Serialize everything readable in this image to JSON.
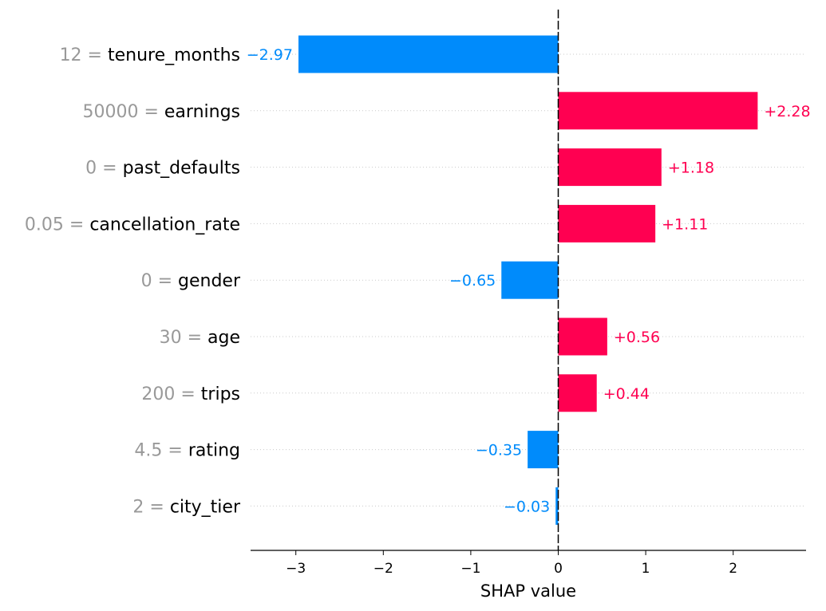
{
  "colors": {
    "positive": "#ff0051",
    "negative": "#008bfb",
    "feature_value": "#999999",
    "feature_name": "#000000"
  },
  "chart_data": {
    "type": "bar",
    "orientation": "horizontal",
    "xlabel": "SHAP value",
    "xlim": [
      -3.5,
      2.8
    ],
    "xticks": [
      {
        "value": -3,
        "label": "−3"
      },
      {
        "value": -2,
        "label": "−2"
      },
      {
        "value": -1,
        "label": "−1"
      },
      {
        "value": 0,
        "label": "0"
      },
      {
        "value": 1,
        "label": "1"
      },
      {
        "value": 2,
        "label": "2"
      }
    ],
    "grid": "horizontal-dotted",
    "features": [
      {
        "value_label": "12",
        "name": "tenure_months",
        "shap": -2.97,
        "label": "−2.97"
      },
      {
        "value_label": "50000",
        "name": "earnings",
        "shap": 2.28,
        "label": "+2.28"
      },
      {
        "value_label": "0",
        "name": "past_defaults",
        "shap": 1.18,
        "label": "+1.18"
      },
      {
        "value_label": "0.05",
        "name": "cancellation_rate",
        "shap": 1.11,
        "label": "+1.11"
      },
      {
        "value_label": "0",
        "name": "gender",
        "shap": -0.65,
        "label": "−0.65"
      },
      {
        "value_label": "30",
        "name": "age",
        "shap": 0.56,
        "label": "+0.56"
      },
      {
        "value_label": "200",
        "name": "trips",
        "shap": 0.44,
        "label": "+0.44"
      },
      {
        "value_label": "4.5",
        "name": "rating",
        "shap": -0.35,
        "label": "−0.35"
      },
      {
        "value_label": "2",
        "name": "city_tier",
        "shap": -0.03,
        "label": "−0.03"
      }
    ]
  }
}
